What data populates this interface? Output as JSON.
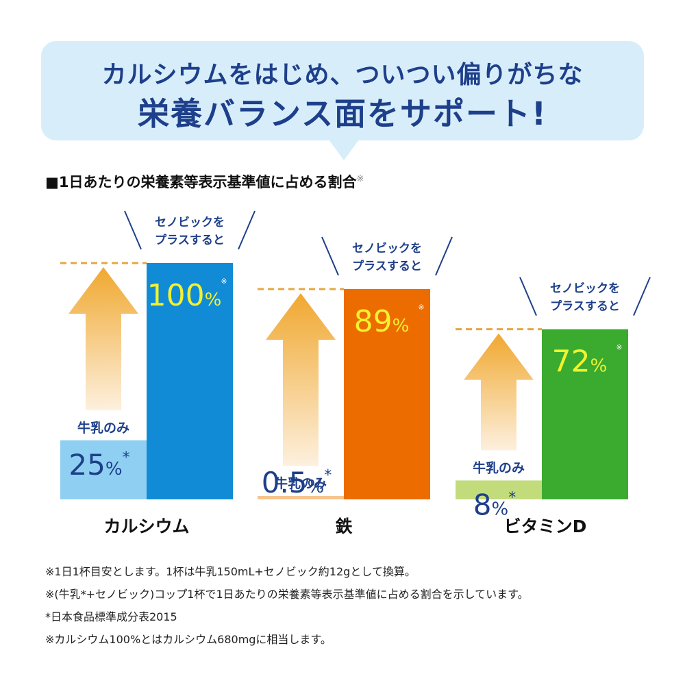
{
  "banner": {
    "line1": "カルシウムをはじめ、ついつい偏りがちな",
    "line2": "栄養バランス面をサポート!"
  },
  "section": {
    "title": "■1日あたりの栄養素等表示基準値に占める割合",
    "note_mark": "※"
  },
  "chart_data": {
    "type": "bar",
    "title": "■1日あたりの栄養素等表示基準値に占める割合",
    "categories": [
      "カルシウム",
      "鉄",
      "ビタミンD"
    ],
    "series": [
      {
        "name": "牛乳のみ",
        "values": [
          25,
          0.5,
          8
        ],
        "colors": [
          "#8fd0f2",
          "#f6c48c",
          "#c3dc7b"
        ]
      },
      {
        "name": "セノビックをプラスすると",
        "values": [
          100,
          89,
          72
        ],
        "colors": [
          "#118bd6",
          "#ec6c00",
          "#3aab2f"
        ]
      }
    ],
    "value_labels": {
      "milk": [
        "25",
        "0.5",
        "8"
      ],
      "plus": [
        "100",
        "89",
        "72"
      ],
      "unit": "%",
      "milk_mark": "*",
      "plus_mark": "※"
    },
    "series_labels": {
      "milk": "牛乳のみ",
      "plus_line1": "セノビックを",
      "plus_line2": "プラスすると"
    },
    "colors": {
      "label_blue": "#1e3f8a",
      "value_yellow": "#f2f230",
      "dash_line": "#e8a542",
      "arrow_top": "#f0a830",
      "arrow_bottom": "#fdf0de"
    }
  },
  "footnotes": [
    "※1日1杯目安とします。1杯は牛乳150mL+セノビック約12gとして換算。",
    "※(牛乳*+セノビック)コップ1杯で1日あたりの栄養素等表示基準値に占める割合を示しています。",
    "*日本食品標準成分表2015",
    "※カルシウム100%とはカルシウム680mgに相当します。"
  ]
}
